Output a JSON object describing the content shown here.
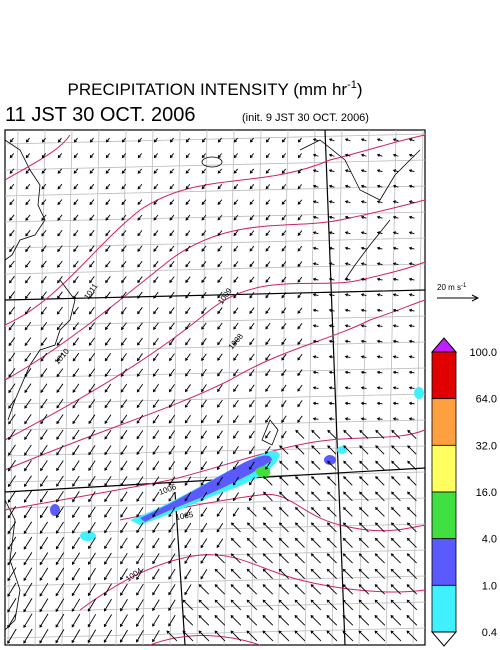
{
  "header": {
    "title": "PRECIPITATION INTENSITY (mm hr",
    "title_exponent": "-1",
    "title_end": ")",
    "valid_time": "11 JST 30 OCT. 2006",
    "init_time": "(init. 9 JST 30 OCT. 2006)"
  },
  "wind_legend": {
    "label": "20 m s",
    "exponent": "-1"
  },
  "isobar_labels": [
    "1011",
    "1010",
    "1009",
    "1008",
    "1006",
    "1005",
    "1004"
  ],
  "colorbar": {
    "levels": [
      {
        "value": 100,
        "label": "100.0"
      },
      {
        "value": 64,
        "label": "64.0"
      },
      {
        "value": 32,
        "label": "32.0"
      },
      {
        "value": 16,
        "label": "16.0"
      },
      {
        "value": 4,
        "label": "4.0"
      },
      {
        "value": 1,
        "label": "1.0"
      },
      {
        "value": 0.4,
        "label": "0.4"
      }
    ],
    "colors": [
      "#e00000",
      "#ffa040",
      "#ffff60",
      "#40e040",
      "#5a5aff",
      "#40f0ff"
    ],
    "over_color": "#c020ff",
    "under_color": "#ffffff"
  }
}
